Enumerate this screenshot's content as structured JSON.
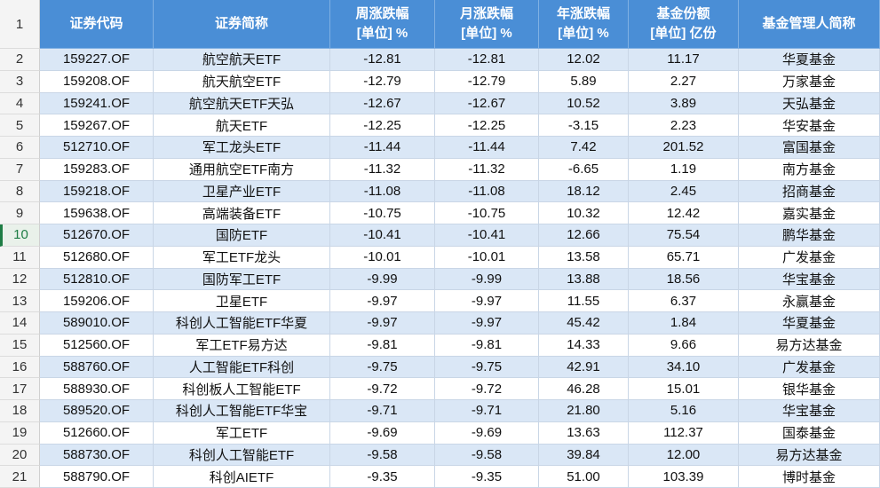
{
  "table": {
    "row_numbers": [
      "1",
      "2",
      "3",
      "4",
      "5",
      "6",
      "7",
      "8",
      "9",
      "10",
      "11",
      "12",
      "13",
      "14",
      "15",
      "16",
      "17",
      "18",
      "19",
      "20",
      "21"
    ],
    "header": [
      {
        "title": "证券代码"
      },
      {
        "title": "证券简称"
      },
      {
        "title": "周涨跌幅",
        "unit": "[单位] %"
      },
      {
        "title": "月涨跌幅",
        "unit": "[单位] %"
      },
      {
        "title": "年涨跌幅",
        "unit": "[单位] %"
      },
      {
        "title": "基金份额",
        "unit": "[单位] 亿份"
      },
      {
        "title": "基金管理人简称"
      }
    ],
    "rows": [
      [
        "159227.OF",
        "航空航天ETF",
        "-12.81",
        "-12.81",
        "12.02",
        "11.17",
        "华夏基金"
      ],
      [
        "159208.OF",
        "航天航空ETF",
        "-12.79",
        "-12.79",
        "5.89",
        "2.27",
        "万家基金"
      ],
      [
        "159241.OF",
        "航空航天ETF天弘",
        "-12.67",
        "-12.67",
        "10.52",
        "3.89",
        "天弘基金"
      ],
      [
        "159267.OF",
        "航天ETF",
        "-12.25",
        "-12.25",
        "-3.15",
        "2.23",
        "华安基金"
      ],
      [
        "512710.OF",
        "军工龙头ETF",
        "-11.44",
        "-11.44",
        "7.42",
        "201.52",
        "富国基金"
      ],
      [
        "159283.OF",
        "通用航空ETF南方",
        "-11.32",
        "-11.32",
        "-6.65",
        "1.19",
        "南方基金"
      ],
      [
        "159218.OF",
        "卫星产业ETF",
        "-11.08",
        "-11.08",
        "18.12",
        "2.45",
        "招商基金"
      ],
      [
        "159638.OF",
        "高端装备ETF",
        "-10.75",
        "-10.75",
        "10.32",
        "12.42",
        "嘉实基金"
      ],
      [
        "512670.OF",
        "国防ETF",
        "-10.41",
        "-10.41",
        "12.66",
        "75.54",
        "鹏华基金"
      ],
      [
        "512680.OF",
        "军工ETF龙头",
        "-10.01",
        "-10.01",
        "13.58",
        "65.71",
        "广发基金"
      ],
      [
        "512810.OF",
        "国防军工ETF",
        "-9.99",
        "-9.99",
        "13.88",
        "18.56",
        "华宝基金"
      ],
      [
        "159206.OF",
        "卫星ETF",
        "-9.97",
        "-9.97",
        "11.55",
        "6.37",
        "永赢基金"
      ],
      [
        "589010.OF",
        "科创人工智能ETF华夏",
        "-9.97",
        "-9.97",
        "45.42",
        "1.84",
        "华夏基金"
      ],
      [
        "512560.OF",
        "军工ETF易方达",
        "-9.81",
        "-9.81",
        "14.33",
        "9.66",
        "易方达基金"
      ],
      [
        "588760.OF",
        "人工智能ETF科创",
        "-9.75",
        "-9.75",
        "42.91",
        "34.10",
        "广发基金"
      ],
      [
        "588930.OF",
        "科创板人工智能ETF",
        "-9.72",
        "-9.72",
        "46.28",
        "15.01",
        "银华基金"
      ],
      [
        "589520.OF",
        "科创人工智能ETF华宝",
        "-9.71",
        "-9.71",
        "21.80",
        "5.16",
        "华宝基金"
      ],
      [
        "512660.OF",
        "军工ETF",
        "-9.69",
        "-9.69",
        "13.63",
        "112.37",
        "国泰基金"
      ],
      [
        "588730.OF",
        "科创人工智能ETF",
        "-9.58",
        "-9.58",
        "39.84",
        "12.00",
        "易方达基金"
      ],
      [
        "588790.OF",
        "科创AIETF",
        "-9.35",
        "-9.35",
        "51.00",
        "103.39",
        "博时基金"
      ]
    ]
  }
}
